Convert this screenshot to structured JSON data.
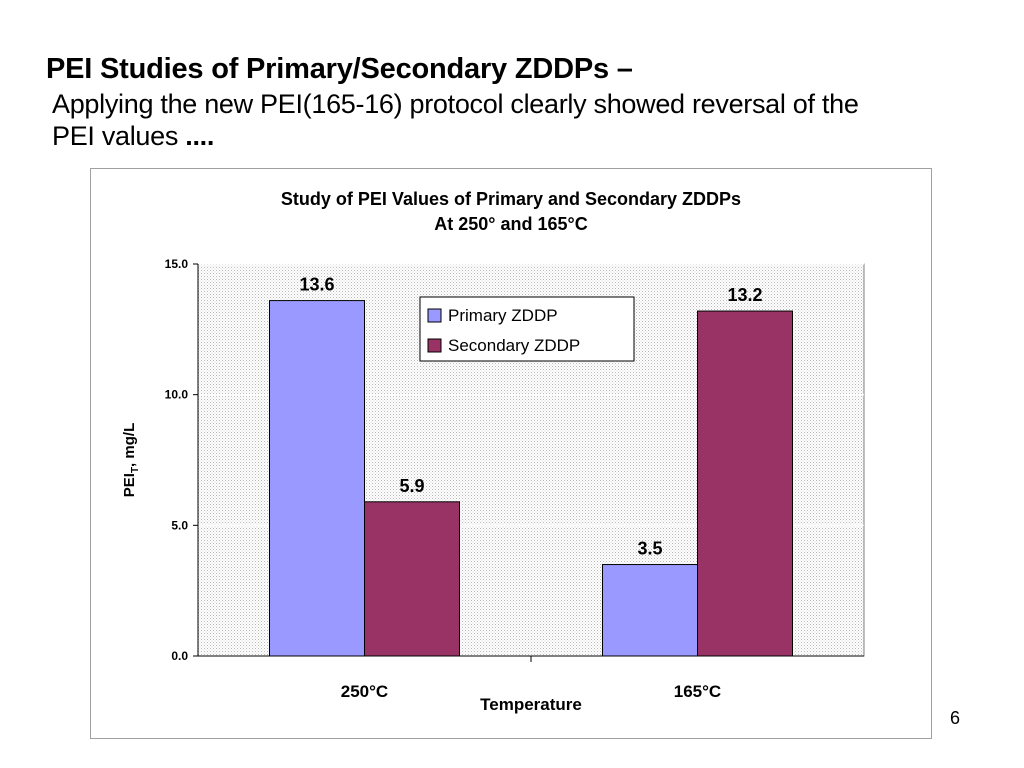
{
  "slide": {
    "title": "PEI Studies of Primary/Secondary ZDDPs –",
    "subtitle_text": "Applying the new PEI(165-16) protocol clearly showed reversal of the PEI values",
    "subtitle_trailing": "....",
    "page_number": "6"
  },
  "chart_data": {
    "type": "bar",
    "title": "Study of PEI Values of Primary and Secondary ZDDPs",
    "subtitle": "At 250° and 165°C",
    "xlabel": "Temperature",
    "ylabel_main": "PEI",
    "ylabel_sub": "T",
    "ylabel_rest": ", mg/L",
    "categories": [
      "250°C",
      "165°C"
    ],
    "series": [
      {
        "name": "Primary ZDDP",
        "values": [
          13.6,
          3.5
        ],
        "color": "#9999ff",
        "labels": [
          "13.6",
          "3.5"
        ]
      },
      {
        "name": "Secondary ZDDP",
        "values": [
          5.9,
          13.2
        ],
        "color": "#993366",
        "labels": [
          "5.9",
          "13.2"
        ]
      }
    ],
    "ylim": [
      0,
      15
    ],
    "yticks": [
      0,
      5,
      10,
      15
    ],
    "ytick_labels": [
      "0.0",
      "5.0",
      "10.0",
      "15.0"
    ],
    "grid": true,
    "plot_background": "#ebebeb",
    "legend_position": "top-center"
  }
}
